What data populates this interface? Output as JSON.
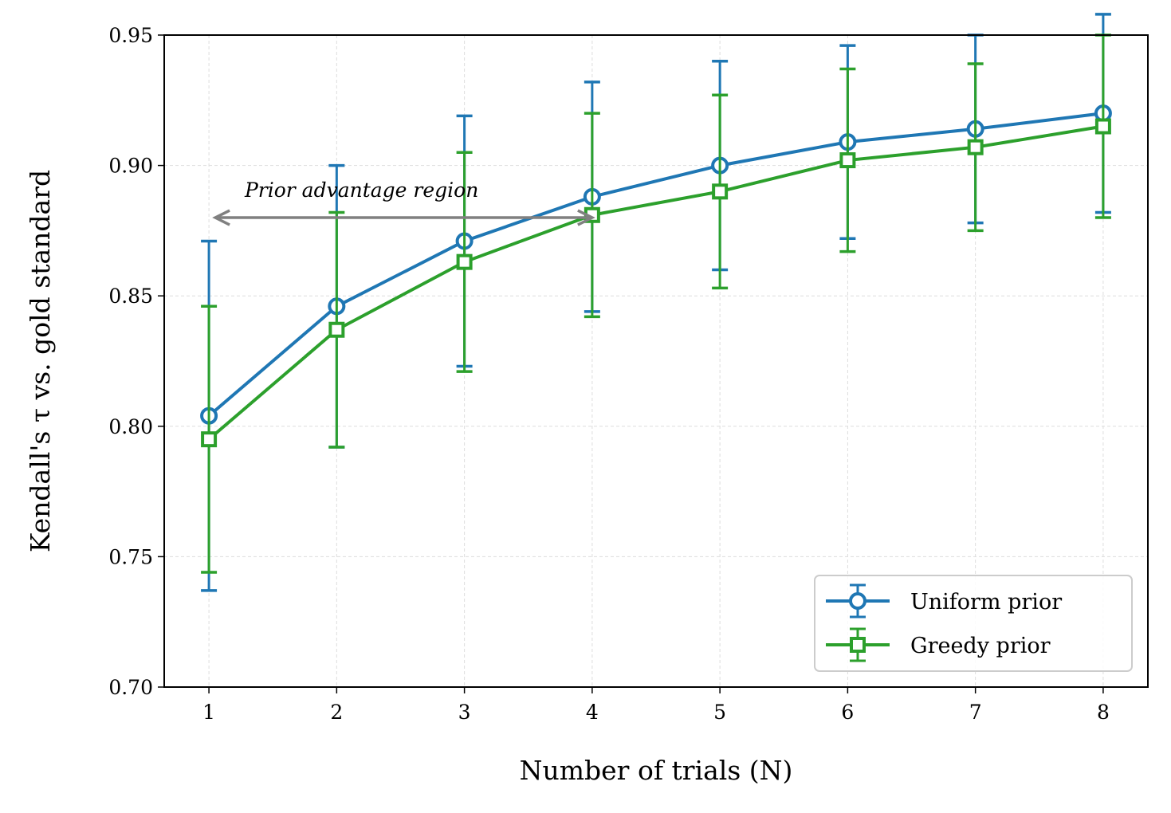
{
  "chart_data": {
    "type": "line",
    "xlabel": "Number of trials (N)",
    "ylabel": "Kendall's τ vs. gold standard",
    "xlim": [
      0.65,
      8.35
    ],
    "ylim": [
      0.7,
      0.95
    ],
    "x": [
      1,
      2,
      3,
      4,
      5,
      6,
      7,
      8
    ],
    "xticks": [
      "1",
      "2",
      "3",
      "4",
      "5",
      "6",
      "7",
      "8"
    ],
    "yticks": [
      "0.70",
      "0.75",
      "0.80",
      "0.85",
      "0.90",
      "0.95"
    ],
    "grid": true,
    "legend_position": "lower-right",
    "series": [
      {
        "name": "Uniform prior",
        "color": "#1f77b4",
        "marker": "circle",
        "values": [
          0.804,
          0.846,
          0.871,
          0.888,
          0.9,
          0.909,
          0.914,
          0.92
        ],
        "errors": [
          0.067,
          0.054,
          0.048,
          0.044,
          0.04,
          0.037,
          0.036,
          0.038
        ]
      },
      {
        "name": "Greedy prior",
        "color": "#2ca02c",
        "marker": "square",
        "values": [
          0.795,
          0.837,
          0.863,
          0.881,
          0.89,
          0.902,
          0.907,
          0.915
        ],
        "errors": [
          0.051,
          0.045,
          0.042,
          0.039,
          0.037,
          0.035,
          0.032,
          0.035
        ]
      }
    ],
    "annotation": {
      "text": "Prior advantage region",
      "arrow_from": [
        4,
        0.88
      ],
      "arrow_to": [
        1.05,
        0.88
      ],
      "text_at": [
        1.28,
        0.888
      ],
      "color": "#808080"
    }
  }
}
